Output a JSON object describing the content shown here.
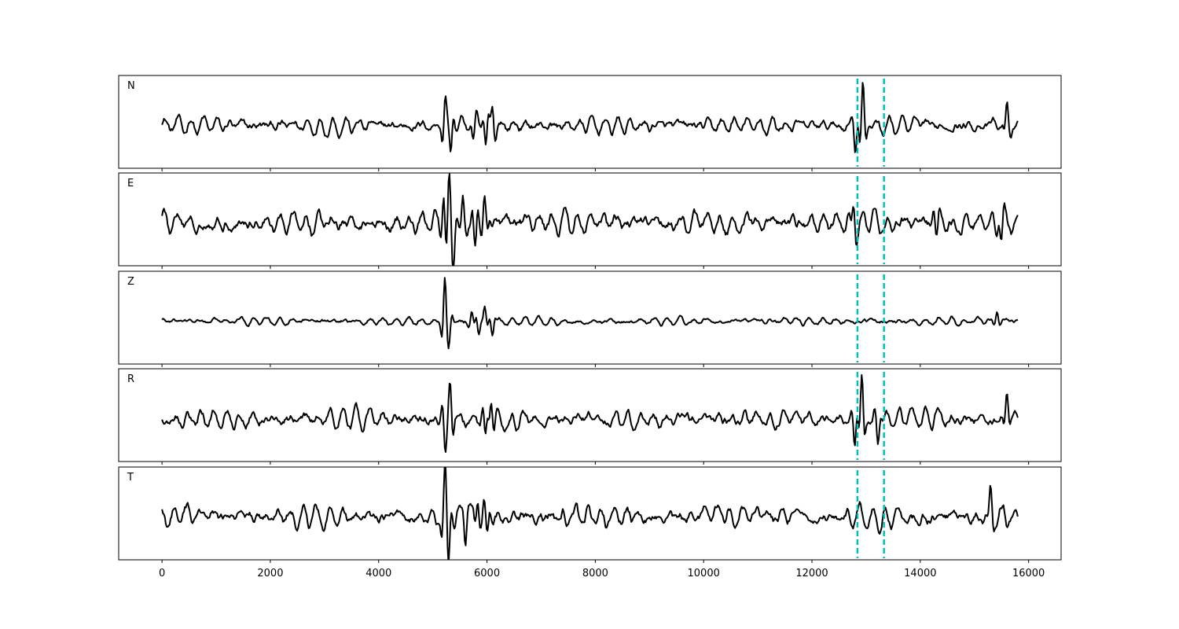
{
  "chart_data": {
    "type": "line",
    "title": "",
    "xlabel": "",
    "ylabel": "",
    "xlim": [
      -800,
      16600
    ],
    "xticks": [
      0,
      2000,
      4000,
      6000,
      8000,
      10000,
      12000,
      14000,
      16000
    ],
    "sample_count": 15800,
    "shared_x": true,
    "grid": false,
    "line_color": "#000000",
    "marker_color": "#00bfbf",
    "vertical_markers": [
      12840,
      13330
    ],
    "panels": [
      {
        "label": "N",
        "noise_level": 0.22,
        "events": [
          {
            "x": 5230,
            "amplitude": 0.82
          },
          {
            "x": 5330,
            "amplitude": -0.75
          },
          {
            "x": 5750,
            "amplitude": -0.45
          },
          {
            "x": 5980,
            "amplitude": -0.65
          },
          {
            "x": 6100,
            "amplitude": 0.55
          },
          {
            "x": 12800,
            "amplitude": -0.55
          },
          {
            "x": 12940,
            "amplitude": 1.0
          },
          {
            "x": 15600,
            "amplitude": 0.45
          }
        ]
      },
      {
        "label": "E",
        "noise_level": 0.3,
        "events": [
          {
            "x": 5200,
            "amplitude": 0.7
          },
          {
            "x": 5300,
            "amplitude": 1.0
          },
          {
            "x": 5380,
            "amplitude": -0.75
          },
          {
            "x": 5560,
            "amplitude": 0.6
          },
          {
            "x": 5780,
            "amplitude": -0.75
          },
          {
            "x": 5950,
            "amplitude": 0.6
          },
          {
            "x": 12770,
            "amplitude": 0.6
          },
          {
            "x": 14300,
            "amplitude": -0.55
          },
          {
            "x": 15500,
            "amplitude": -0.45
          }
        ]
      },
      {
        "label": "Z",
        "noise_level": 0.1,
        "events": [
          {
            "x": 5220,
            "amplitude": 1.0
          },
          {
            "x": 5300,
            "amplitude": -0.45
          },
          {
            "x": 5720,
            "amplitude": 0.3
          },
          {
            "x": 5850,
            "amplitude": -0.35
          },
          {
            "x": 5960,
            "amplitude": 0.35
          },
          {
            "x": 6100,
            "amplitude": -0.3
          },
          {
            "x": 15420,
            "amplitude": 0.25
          }
        ]
      },
      {
        "label": "R",
        "noise_level": 0.25,
        "events": [
          {
            "x": 5230,
            "amplitude": -0.75
          },
          {
            "x": 5320,
            "amplitude": 0.8
          },
          {
            "x": 5970,
            "amplitude": -0.65
          },
          {
            "x": 6080,
            "amplitude": 0.6
          },
          {
            "x": 12790,
            "amplitude": -0.7
          },
          {
            "x": 12920,
            "amplitude": 1.0
          },
          {
            "x": 13220,
            "amplitude": -0.55
          },
          {
            "x": 15600,
            "amplitude": 0.55
          }
        ]
      },
      {
        "label": "T",
        "noise_level": 0.28,
        "events": [
          {
            "x": 5220,
            "amplitude": 0.85
          },
          {
            "x": 5290,
            "amplitude": -1.0
          },
          {
            "x": 5600,
            "amplitude": -0.55
          },
          {
            "x": 5830,
            "amplitude": 0.6
          },
          {
            "x": 6000,
            "amplitude": -0.5
          },
          {
            "x": 15300,
            "amplitude": 0.65
          }
        ]
      }
    ]
  }
}
